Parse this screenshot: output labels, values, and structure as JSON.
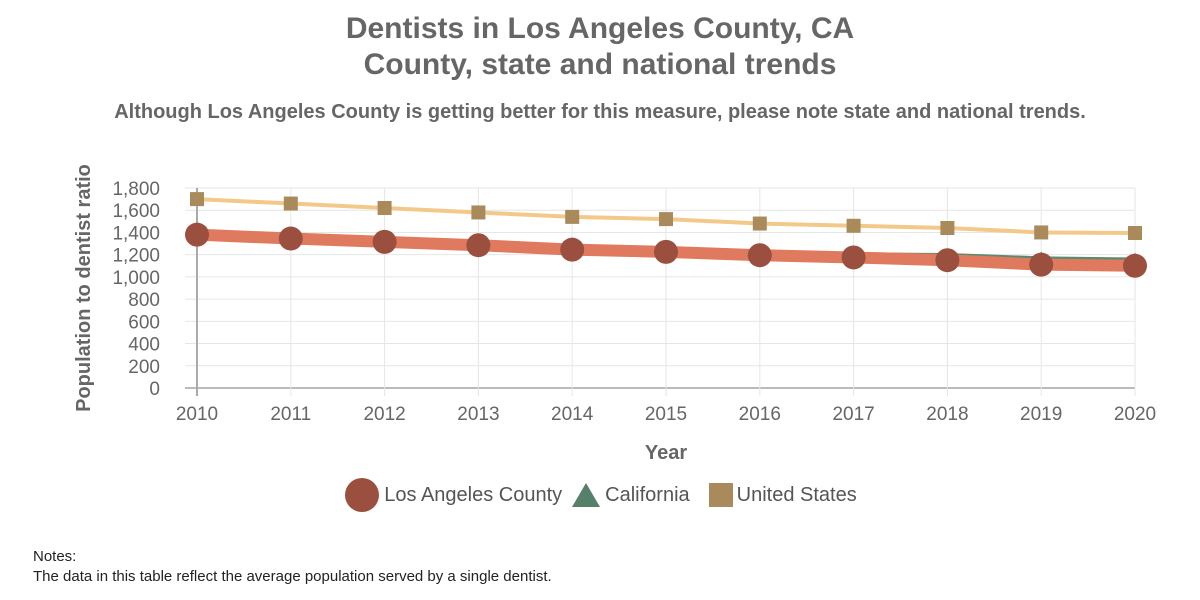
{
  "chart_data": {
    "type": "line",
    "title": "Dentists in Los Angeles County, CA",
    "title_line2": "County, state and national trends",
    "subtitle": "Although Los Angeles County is getting better for this measure, please note state and national trends.",
    "xlabel": "Year",
    "ylabel": "Population to dentist ratio",
    "x": [
      "2010",
      "2011",
      "2012",
      "2013",
      "2014",
      "2015",
      "2016",
      "2017",
      "2018",
      "2019",
      "2020"
    ],
    "ylim": [
      0,
      1800
    ],
    "yticks": [
      0,
      200,
      400,
      600,
      800,
      1000,
      1200,
      1400,
      1600,
      1800
    ],
    "ytick_labels": [
      "0",
      "200",
      "400",
      "600",
      "800",
      "1,000",
      "1,200",
      "1,400",
      "1,600",
      "1,800"
    ],
    "grid": true,
    "legend_position": "bottom",
    "series": [
      {
        "name": "United States",
        "color": "#f3c98b",
        "marker_color": "#a98b5b",
        "marker": "square",
        "values": [
          1700,
          1660,
          1620,
          1580,
          1540,
          1520,
          1480,
          1460,
          1440,
          1400,
          1395
        ]
      },
      {
        "name": "California",
        "color": "#5b8a6e",
        "marker_color": "#56806a",
        "marker": "triangle",
        "values": [
          1380,
          1345,
          1315,
          1285,
          1250,
          1230,
          1200,
          1175,
          1170,
          1140,
          1130
        ]
      },
      {
        "name": "Los Angeles County",
        "color": "#e07a5f",
        "marker_color": "#9b4f3f",
        "marker": "circle",
        "values": [
          1380,
          1345,
          1315,
          1285,
          1245,
          1225,
          1195,
          1175,
          1150,
          1110,
          1100
        ]
      }
    ],
    "legend_order": [
      "Los Angeles County",
      "California",
      "United States"
    ]
  },
  "notes": {
    "heading": "Notes:",
    "text": "The data in this table reflect the average population served by a single dentist."
  }
}
